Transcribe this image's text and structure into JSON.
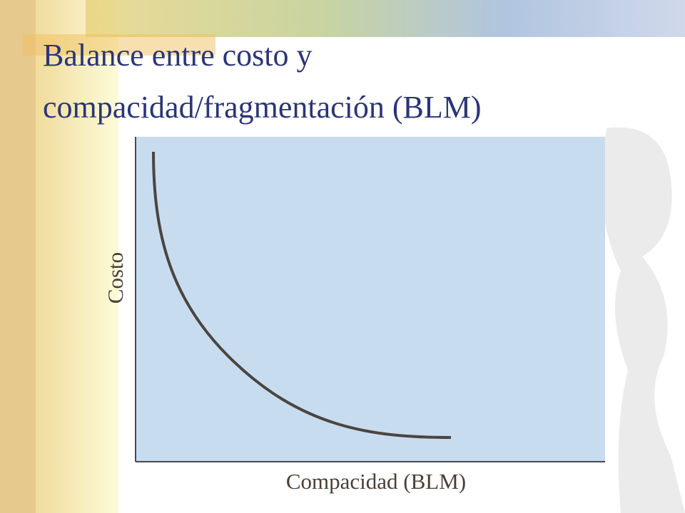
{
  "slide": {
    "title": [
      "Balance entre costo y",
      "compacidad/fragmentación (BLM)"
    ],
    "y_axis_label": "Costo",
    "x_axis_label": "Compacidad (BLM)"
  }
}
